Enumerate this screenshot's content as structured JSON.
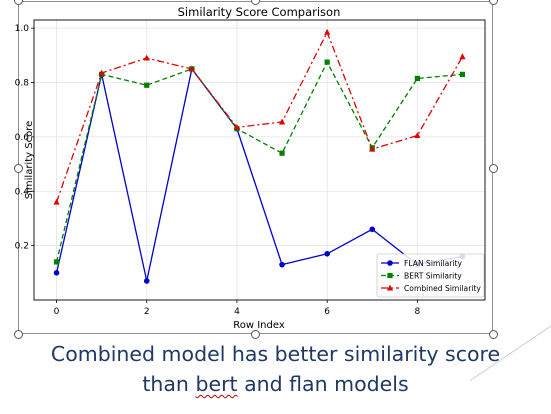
{
  "chart_data": {
    "type": "line",
    "title": "Similarity Score Comparison",
    "xlabel": "Row Index",
    "ylabel": "Similarity Score",
    "xlim": [
      -0.5,
      9.5
    ],
    "ylim": [
      0.0,
      1.03
    ],
    "xticks": [
      0,
      2,
      4,
      6,
      8
    ],
    "yticks": [
      0.2,
      0.4,
      0.6,
      0.8,
      1.0
    ],
    "grid": true,
    "legend_position": "lower-right",
    "x": [
      0,
      1,
      2,
      3,
      4,
      5,
      6,
      7,
      8,
      9
    ],
    "series": [
      {
        "name": "FLAN Similarity",
        "color": "#0000cc",
        "line_style": "solid",
        "marker": "circle",
        "values": [
          0.1,
          0.83,
          0.07,
          0.85,
          0.63,
          0.13,
          0.17,
          0.26,
          0.13,
          0.16
        ]
      },
      {
        "name": "BERT Similarity",
        "color": "#007f00",
        "line_style": "dashed",
        "marker": "square",
        "values": [
          0.14,
          0.83,
          0.79,
          0.85,
          0.63,
          0.54,
          0.875,
          0.56,
          0.815,
          0.83
        ]
      },
      {
        "name": "Combined Similarity",
        "color": "#e00000",
        "line_style": "dashdot",
        "marker": "triangle",
        "values": [
          0.36,
          0.835,
          0.89,
          0.85,
          0.635,
          0.655,
          0.985,
          0.555,
          0.605,
          0.895
        ]
      }
    ]
  },
  "slide": {
    "caption_line1": "Combined model has better similarity score",
    "caption_line2_a": "than ",
    "caption_line2_b": "bert",
    "caption_line2_c": " and flan models"
  }
}
